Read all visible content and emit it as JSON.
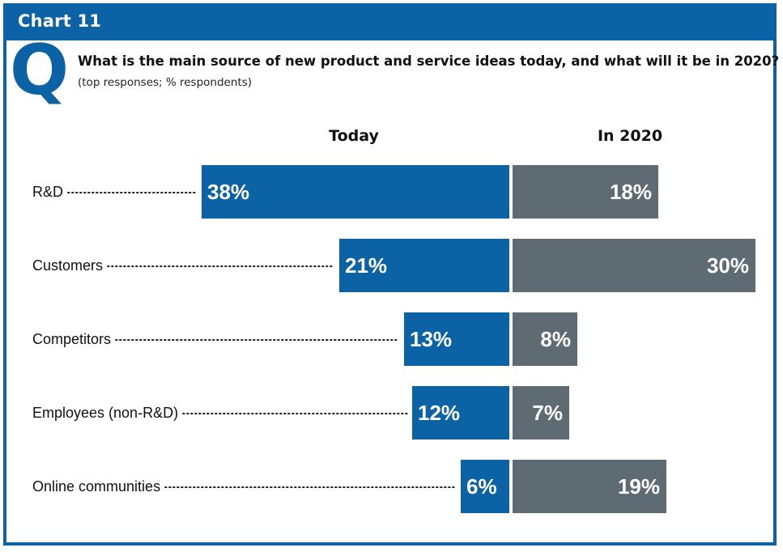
{
  "header": {
    "title": "Chart 11",
    "q_letter": "Q"
  },
  "question": "What is the main source of new product and service ideas today, and what will it be in 2020?",
  "subtitle": "(top responses; % respondents)",
  "colors": {
    "accent": "#0b62a4",
    "today": "#0b62a4",
    "future": "#5e6b73"
  },
  "chart_data": {
    "type": "bar",
    "orientation": "horizontal-diverging",
    "categories": [
      "R&D",
      "Customers",
      "Competitors",
      "Employees (non-R&D)",
      "Online communities"
    ],
    "series": [
      {
        "name": "Today",
        "values": [
          38,
          21,
          13,
          12,
          6
        ],
        "labels": [
          "38%",
          "21%",
          "13%",
          "12%",
          "6%"
        ]
      },
      {
        "name": "In 2020",
        "values": [
          18,
          30,
          8,
          7,
          19
        ],
        "labels": [
          "18%",
          "30%",
          "8%",
          "7%",
          "19%"
        ]
      }
    ],
    "unit": "%"
  }
}
